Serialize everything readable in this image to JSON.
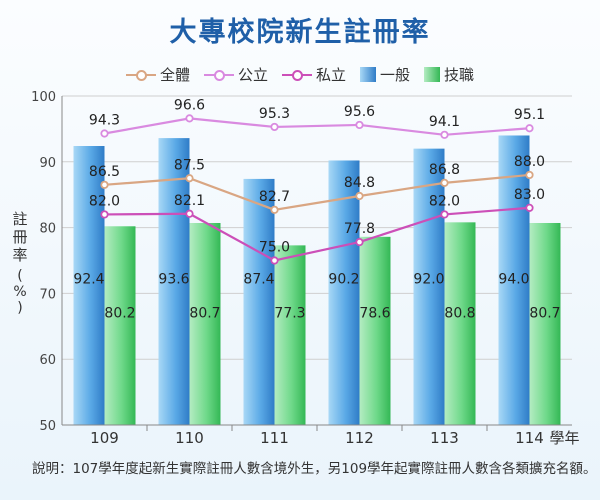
{
  "chart_data": {
    "type": "bar+line",
    "title": "大專校院新生註冊率",
    "ylabel_chars": [
      "註",
      "冊",
      "率"
    ],
    "yunit_chars": [
      "(",
      "%",
      ")"
    ],
    "xunit": "學年",
    "categories": [
      "109",
      "110",
      "111",
      "112",
      "113",
      "114"
    ],
    "ylim": [
      50,
      100
    ],
    "yticks": [
      50,
      60,
      70,
      80,
      90,
      100
    ],
    "grid": true,
    "bar_series": [
      {
        "name": "一般",
        "color": "#3d8fd6",
        "values": [
          92.4,
          93.6,
          87.4,
          90.2,
          92.0,
          94.0
        ]
      },
      {
        "name": "技職",
        "color": "#3fc25e",
        "values": [
          80.2,
          80.7,
          77.3,
          78.6,
          80.8,
          80.7
        ]
      }
    ],
    "line_series": [
      {
        "name": "全體",
        "color": "#d9a683",
        "values": [
          86.5,
          87.5,
          82.7,
          84.8,
          86.8,
          88.0
        ]
      },
      {
        "name": "公立",
        "color": "#d98ae0",
        "values": [
          94.3,
          96.6,
          95.3,
          95.6,
          94.1,
          95.1
        ]
      },
      {
        "name": "私立",
        "color": "#cc4fb8",
        "values": [
          82.0,
          82.1,
          75.0,
          77.8,
          82.0,
          83.0
        ]
      }
    ]
  },
  "legend": [
    {
      "type": "line",
      "name": "全體",
      "color": "#d9a683"
    },
    {
      "type": "line",
      "name": "公立",
      "color": "#d98ae0"
    },
    {
      "type": "line",
      "name": "私立",
      "color": "#cc4fb8"
    },
    {
      "type": "bar",
      "name": "一般",
      "color": "#3d8fd6"
    },
    {
      "type": "bar",
      "name": "技職",
      "color": "#3fc25e"
    }
  ],
  "footnote": "說明：107學年度起新生實際註冊人數含境外生，另109學年起實際註冊人數含各類擴充名額。"
}
